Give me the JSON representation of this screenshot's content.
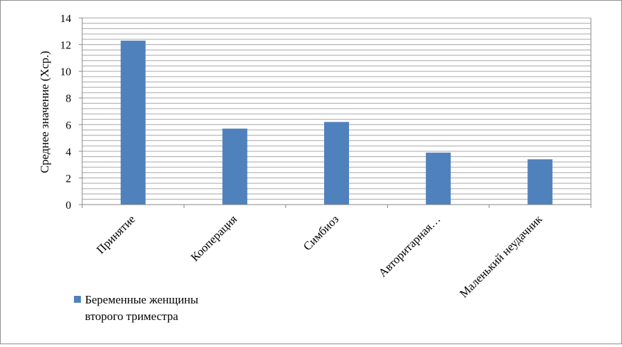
{
  "chart_data": {
    "type": "bar",
    "categories": [
      "Принятие",
      "Кооперация",
      "Симбиоз",
      "Авторитарная…",
      "Маленький неудачник"
    ],
    "series": [
      {
        "name": "Беременные женщины второго триместра",
        "values": [
          12.3,
          5.7,
          6.2,
          3.9,
          3.4
        ]
      }
    ],
    "ylabel": "Среднее значение (Хср.)",
    "xlabel": "",
    "title": "",
    "ylim": [
      0,
      14
    ],
    "yticks": [
      0,
      2,
      4,
      6,
      8,
      10,
      12,
      14
    ],
    "minor_gridlines_step": 0.4,
    "grid": true,
    "legend": {
      "position": "bottom-left",
      "lines": [
        "Беременные женщины",
        "второго триместра"
      ]
    },
    "colors": {
      "bar": "#4f81bd",
      "grid": "#a6a6a6",
      "axis": "#868686"
    }
  }
}
